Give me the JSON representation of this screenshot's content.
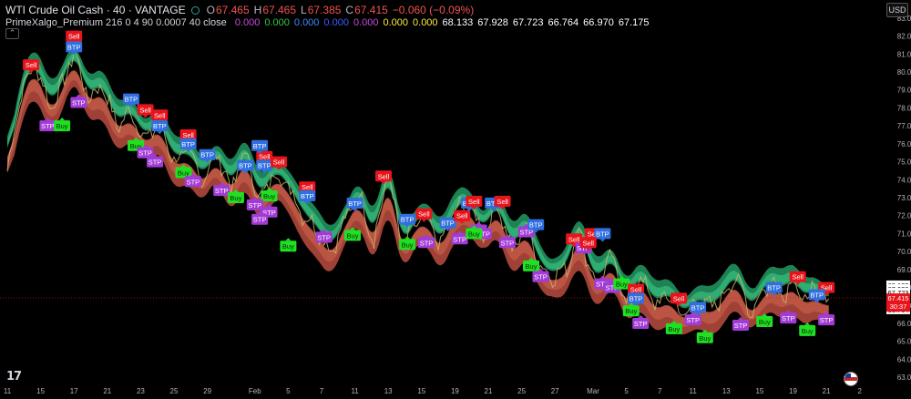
{
  "header": {
    "symbol": "WTI Crude Oil Cash · 40 · VANTAGE",
    "open_label": "O",
    "open": "67.465",
    "high_label": "H",
    "high": "67.465",
    "low_label": "L",
    "low": "67.385",
    "close_label": "C",
    "close": "67.415",
    "change": "−0.060 (−0.09%)"
  },
  "indicator": {
    "label": "PrimeXalgo_Premium 216 0 4 90 0.0007 40 close",
    "values": [
      {
        "text": "0.000",
        "color": "#c54bd6"
      },
      {
        "text": "0.000",
        "color": "#2ecc40"
      },
      {
        "text": "0.000",
        "color": "#3d8bff"
      },
      {
        "text": "0.000",
        "color": "#3d5afe"
      },
      {
        "text": "0.000",
        "color": "#c54bd6"
      },
      {
        "text": "0.000",
        "color": "#ffeb3b"
      },
      {
        "text": "0.000",
        "color": "#ffeb3b"
      },
      {
        "text": "68.133",
        "color": "#ffffff"
      },
      {
        "text": "67.928",
        "color": "#ffffff"
      },
      {
        "text": "67.723",
        "color": "#ffffff"
      },
      {
        "text": "66.764",
        "color": "#ffffff"
      },
      {
        "text": "66.970",
        "color": "#ffffff"
      },
      {
        "text": "67.175",
        "color": "#ffffff"
      }
    ]
  },
  "currency": "USD",
  "chart_data": {
    "type": "line",
    "ylim": [
      62.5,
      83.5
    ],
    "y_ticks": [
      "83.000",
      "82.000",
      "81.000",
      "80.000",
      "79.000",
      "78.000",
      "77.000",
      "76.000",
      "75.000",
      "74.000",
      "73.000",
      "72.000",
      "71.000",
      "70.000",
      "69.000",
      "68.000",
      "67.000",
      "66.000",
      "65.000",
      "64.000",
      "63.000"
    ],
    "x_ticks": [
      {
        "label": "11",
        "i": 0
      },
      {
        "label": "15",
        "i": 14
      },
      {
        "label": "17",
        "i": 28
      },
      {
        "label": "21",
        "i": 42
      },
      {
        "label": "23",
        "i": 56
      },
      {
        "label": "25",
        "i": 70
      },
      {
        "label": "29",
        "i": 84
      },
      {
        "label": "Feb",
        "i": 104
      },
      {
        "label": "5",
        "i": 118
      },
      {
        "label": "7",
        "i": 132
      },
      {
        "label": "11",
        "i": 146
      },
      {
        "label": "13",
        "i": 160
      },
      {
        "label": "15",
        "i": 174
      },
      {
        "label": "19",
        "i": 188
      },
      {
        "label": "21",
        "i": 202
      },
      {
        "label": "25",
        "i": 216
      },
      {
        "label": "27",
        "i": 230
      },
      {
        "label": "Mar",
        "i": 246
      },
      {
        "label": "5",
        "i": 260
      },
      {
        "label": "7",
        "i": 274
      },
      {
        "label": "11",
        "i": 288
      },
      {
        "label": "13",
        "i": 302
      },
      {
        "label": "15",
        "i": 316
      },
      {
        "label": "19",
        "i": 330
      },
      {
        "label": "21",
        "i": 344
      },
      {
        "label": "2",
        "i": 358
      }
    ],
    "x_count": 365,
    "x_last": 345,
    "price_path": [
      [
        0,
        74.5
      ],
      [
        6,
        79.0
      ],
      [
        12,
        80.5
      ],
      [
        18,
        78.0
      ],
      [
        24,
        79.5
      ],
      [
        28,
        81.2
      ],
      [
        34,
        78.5
      ],
      [
        40,
        79.3
      ],
      [
        46,
        77.0
      ],
      [
        52,
        77.8
      ],
      [
        58,
        76.2
      ],
      [
        64,
        77.3
      ],
      [
        70,
        75.0
      ],
      [
        76,
        75.5
      ],
      [
        82,
        74.0
      ],
      [
        88,
        75.5
      ],
      [
        94,
        73.5
      ],
      [
        100,
        75.6
      ],
      [
        106,
        72.8
      ],
      [
        112,
        74.4
      ],
      [
        118,
        73.7
      ],
      [
        124,
        72.1
      ],
      [
        130,
        71.3
      ],
      [
        136,
        70.0
      ],
      [
        142,
        71.8
      ],
      [
        148,
        73.2
      ],
      [
        154,
        70.5
      ],
      [
        160,
        74.6
      ],
      [
        166,
        70.0
      ],
      [
        170,
        71.4
      ],
      [
        176,
        72.0
      ],
      [
        182,
        70.3
      ],
      [
        188,
        72.4
      ],
      [
        194,
        72.6
      ],
      [
        200,
        71.0
      ],
      [
        206,
        72.7
      ],
      [
        212,
        70.0
      ],
      [
        218,
        71.5
      ],
      [
        224,
        69.1
      ],
      [
        230,
        68.6
      ],
      [
        236,
        69.3
      ],
      [
        240,
        71.5
      ],
      [
        244,
        69.3
      ],
      [
        248,
        68.2
      ],
      [
        254,
        69.7
      ],
      [
        260,
        67.2
      ],
      [
        266,
        68.6
      ],
      [
        272,
        67.0
      ],
      [
        278,
        67.6
      ],
      [
        284,
        66.4
      ],
      [
        290,
        67.3
      ],
      [
        296,
        66.8
      ],
      [
        302,
        67.8
      ],
      [
        306,
        68.7
      ],
      [
        312,
        66.6
      ],
      [
        316,
        67.6
      ],
      [
        322,
        68.4
      ],
      [
        326,
        67.5
      ],
      [
        330,
        68.7
      ],
      [
        334,
        67.1
      ],
      [
        338,
        67.9
      ],
      [
        342,
        67.3
      ],
      [
        345,
        67.415
      ]
    ],
    "current_price": "67.415",
    "countdown": "30:37",
    "indicator_levels": [
      {
        "value": 68.133,
        "text": "68.133"
      },
      {
        "value": 67.928,
        "text": "67.928"
      },
      {
        "value": 67.723,
        "text": "67.723"
      },
      {
        "value": 67.175,
        "text": "67.175"
      },
      {
        "value": 66.97,
        "text": "66.970"
      },
      {
        "value": 66.764,
        "text": "66.764"
      }
    ],
    "signals": [
      {
        "t": "Sell",
        "i": 10,
        "y": 80.4
      },
      {
        "t": "Sell",
        "i": 28,
        "y": 82.0
      },
      {
        "t": "BTP",
        "i": 28,
        "y": 81.4
      },
      {
        "t": "STP",
        "i": 17,
        "y": 77.0
      },
      {
        "t": "Buy",
        "i": 23,
        "y": 77.0
      },
      {
        "t": "STP",
        "i": 30,
        "y": 78.3
      },
      {
        "t": "BTP",
        "i": 52,
        "y": 78.5
      },
      {
        "t": "Sell",
        "i": 58,
        "y": 77.9
      },
      {
        "t": "Sell",
        "i": 64,
        "y": 77.6
      },
      {
        "t": "BTP",
        "i": 64,
        "y": 77.0
      },
      {
        "t": "Buy",
        "i": 54,
        "y": 75.9
      },
      {
        "t": "STP",
        "i": 58,
        "y": 75.5
      },
      {
        "t": "STP",
        "i": 62,
        "y": 75.0
      },
      {
        "t": "Sell",
        "i": 76,
        "y": 76.5
      },
      {
        "t": "BTP",
        "i": 76,
        "y": 76.0
      },
      {
        "t": "BTP",
        "i": 84,
        "y": 75.4
      },
      {
        "t": "Buy",
        "i": 74,
        "y": 74.4
      },
      {
        "t": "STP",
        "i": 78,
        "y": 73.9
      },
      {
        "t": "STP",
        "i": 90,
        "y": 73.4
      },
      {
        "t": "Buy",
        "i": 96,
        "y": 73.0
      },
      {
        "t": "BTP",
        "i": 100,
        "y": 74.8
      },
      {
        "t": "Sell",
        "i": 108,
        "y": 75.3
      },
      {
        "t": "BTP",
        "i": 108,
        "y": 74.8
      },
      {
        "t": "Sell",
        "i": 114,
        "y": 75.0
      },
      {
        "t": "BTP",
        "i": 106,
        "y": 75.9
      },
      {
        "t": "Buy",
        "i": 110,
        "y": 73.1
      },
      {
        "t": "STP",
        "i": 104,
        "y": 72.6
      },
      {
        "t": "STP",
        "i": 110,
        "y": 72.2
      },
      {
        "t": "STP",
        "i": 106,
        "y": 71.8
      },
      {
        "t": "Sell",
        "i": 126,
        "y": 73.6
      },
      {
        "t": "BTP",
        "i": 126,
        "y": 73.1
      },
      {
        "t": "BTP",
        "i": 146,
        "y": 72.7
      },
      {
        "t": "Sell",
        "i": 158,
        "y": 74.2
      },
      {
        "t": "Buy",
        "i": 118,
        "y": 70.3
      },
      {
        "t": "STP",
        "i": 133,
        "y": 70.8
      },
      {
        "t": "Buy",
        "i": 145,
        "y": 70.9
      },
      {
        "t": "BTP",
        "i": 168,
        "y": 71.8
      },
      {
        "t": "Sell",
        "i": 175,
        "y": 72.1
      },
      {
        "t": "BTP",
        "i": 185,
        "y": 71.6
      },
      {
        "t": "Sell",
        "i": 191,
        "y": 72.0
      },
      {
        "t": "BTP",
        "i": 194,
        "y": 72.7
      },
      {
        "t": "Sell",
        "i": 196,
        "y": 72.8
      },
      {
        "t": "BTP",
        "i": 204,
        "y": 72.7
      },
      {
        "t": "Sell",
        "i": 208,
        "y": 72.8
      },
      {
        "t": "Buy",
        "i": 168,
        "y": 70.4
      },
      {
        "t": "STP",
        "i": 176,
        "y": 70.5
      },
      {
        "t": "STP",
        "i": 190,
        "y": 70.7
      },
      {
        "t": "STP",
        "i": 198,
        "y": 71.2
      },
      {
        "t": "STP",
        "i": 200,
        "y": 71.0
      },
      {
        "t": "Buy",
        "i": 196,
        "y": 71.0
      },
      {
        "t": "STP",
        "i": 210,
        "y": 70.5
      },
      {
        "t": "STP",
        "i": 218,
        "y": 71.1
      },
      {
        "t": "BTP",
        "i": 222,
        "y": 71.5
      },
      {
        "t": "Sell",
        "i": 238,
        "y": 70.7
      },
      {
        "t": "Sell",
        "i": 246,
        "y": 71.0
      },
      {
        "t": "BTP",
        "i": 250,
        "y": 71.0
      },
      {
        "t": "Buy",
        "i": 220,
        "y": 69.2
      },
      {
        "t": "STP",
        "i": 224,
        "y": 68.6
      },
      {
        "t": "STP",
        "i": 242,
        "y": 70.2
      },
      {
        "t": "Sell",
        "i": 244,
        "y": 70.5
      },
      {
        "t": "STP",
        "i": 250,
        "y": 68.2
      },
      {
        "t": "STP",
        "i": 254,
        "y": 68.0
      },
      {
        "t": "Buy",
        "i": 258,
        "y": 68.2
      },
      {
        "t": "Sell",
        "i": 264,
        "y": 67.9
      },
      {
        "t": "BTP",
        "i": 264,
        "y": 67.4
      },
      {
        "t": "Sell",
        "i": 282,
        "y": 67.4
      },
      {
        "t": "BTP",
        "i": 290,
        "y": 66.9
      },
      {
        "t": "Buy",
        "i": 262,
        "y": 66.7
      },
      {
        "t": "STP",
        "i": 266,
        "y": 66.0
      },
      {
        "t": "STP",
        "i": 288,
        "y": 66.2
      },
      {
        "t": "Buy",
        "i": 280,
        "y": 65.7
      },
      {
        "t": "Buy",
        "i": 293,
        "y": 65.2
      },
      {
        "t": "STP",
        "i": 308,
        "y": 65.9
      },
      {
        "t": "BTP",
        "i": 322,
        "y": 68.0
      },
      {
        "t": "Sell",
        "i": 332,
        "y": 68.6
      },
      {
        "t": "Sell",
        "i": 344,
        "y": 68.0
      },
      {
        "t": "BTP",
        "i": 340,
        "y": 67.6
      },
      {
        "t": "Buy",
        "i": 318,
        "y": 66.1
      },
      {
        "t": "STP",
        "i": 328,
        "y": 66.3
      },
      {
        "t": "Buy",
        "i": 336,
        "y": 65.6
      },
      {
        "t": "STP",
        "i": 344,
        "y": 66.2
      }
    ],
    "colors": {
      "bull_band": "#1f8a5a",
      "bull_band_light": "#3fd08a",
      "bear_band": "#a9443a",
      "bear_band_light": "#d0654f",
      "price": "#c9b56b",
      "sell": "#e8141b",
      "buy": "#1fe022",
      "btp": "#2f6fe0",
      "stp": "#a23bd6",
      "current_price_bg": "#e8141b"
    }
  }
}
